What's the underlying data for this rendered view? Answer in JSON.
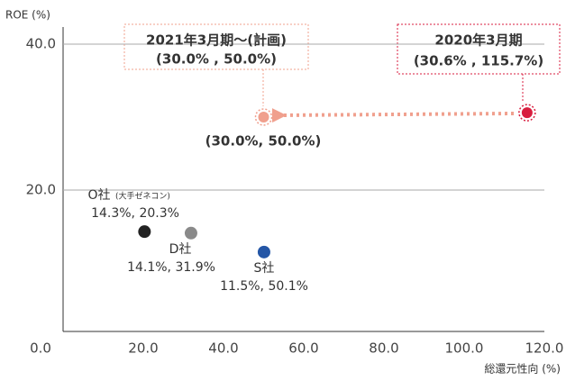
{
  "chart_data": {
    "type": "scatter",
    "x_label": "総還元性向 (%)",
    "y_label": "ROE (%)",
    "xlim": [
      0,
      120
    ],
    "ylim": [
      0,
      40
    ],
    "xticks": [
      {
        "value": 0,
        "label": "0.0"
      },
      {
        "value": 20,
        "label": "20.0"
      },
      {
        "value": 40,
        "label": "40.0"
      },
      {
        "value": 60,
        "label": "60.0"
      },
      {
        "value": 80,
        "label": "80.0"
      },
      {
        "value": 100,
        "label": "100.0"
      },
      {
        "value": 120,
        "label": "120.0"
      }
    ],
    "yticks": [
      {
        "value": 20,
        "label": "20.0"
      },
      {
        "value": 40,
        "label": "40.0"
      }
    ],
    "grid": true,
    "series": [
      {
        "name": "O社",
        "note": "(大手ゼネコン)",
        "color": "#222222",
        "x": [
          20.3
        ],
        "values": [
          14.3
        ],
        "value_labels": [
          "14.3%, 20.3%"
        ]
      },
      {
        "name": "D社",
        "color": "#8a8a8a",
        "x": [
          31.9
        ],
        "values": [
          14.1
        ],
        "value_labels": [
          "14.1%, 31.9%"
        ]
      },
      {
        "name": "S社",
        "color": "#2456a6",
        "x": [
          50.1
        ],
        "values": [
          11.5
        ],
        "value_labels": [
          "11.5%, 50.1%"
        ]
      },
      {
        "name": "2021年3月期～(計画)",
        "color": "#f0a08e",
        "x": [
          50.0
        ],
        "values": [
          30.0
        ],
        "value_labels": [
          "(30.0%, 50.0%)"
        ],
        "box_label": "(30.0% , 50.0%)"
      },
      {
        "name": "2020年3月期",
        "color": "#d81e3f",
        "x": [
          115.7
        ],
        "values": [
          30.6
        ],
        "value_labels": [
          "(30.6% , 115.7%)"
        ]
      }
    ]
  }
}
